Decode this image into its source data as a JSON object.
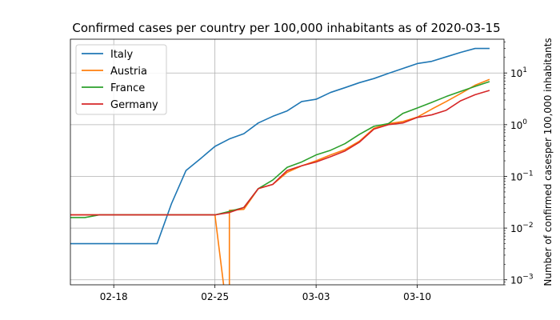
{
  "chart_data": {
    "type": "line",
    "title": "Confirmed cases per country per 100,000 inhabitants as of 2020-03-15",
    "xlabel": "",
    "ylabel": "Number of confirmed casesper 100,000 inhabitants",
    "y_scale": "log",
    "ylim": [
      0.0008,
      45
    ],
    "xlim": [
      "2020-02-15",
      "2020-03-16"
    ],
    "x_ticks": [
      {
        "date": "2020-02-18",
        "label": "02-18"
      },
      {
        "date": "2020-02-25",
        "label": "02-25"
      },
      {
        "date": "2020-03-03",
        "label": "03-03"
      },
      {
        "date": "2020-03-10",
        "label": "03-10"
      }
    ],
    "y_ticks": [
      {
        "value": 0.001,
        "base": "10",
        "exp": "−3"
      },
      {
        "value": 0.01,
        "base": "10",
        "exp": "−2"
      },
      {
        "value": 0.1,
        "base": "10",
        "exp": "−1"
      },
      {
        "value": 1,
        "base": "10",
        "exp": "0"
      },
      {
        "value": 10,
        "base": "10",
        "exp": "1"
      }
    ],
    "grid": true,
    "legend_position": "top-left",
    "series": [
      {
        "name": "Italy",
        "color": "#1f77b4",
        "points": [
          [
            "2020-02-15",
            0.005
          ],
          [
            "2020-02-16",
            0.005
          ],
          [
            "2020-02-17",
            0.005
          ],
          [
            "2020-02-18",
            0.005
          ],
          [
            "2020-02-19",
            0.005
          ],
          [
            "2020-02-20",
            0.005
          ],
          [
            "2020-02-21",
            0.005
          ],
          [
            "2020-02-22",
            0.03
          ],
          [
            "2020-02-23",
            0.13
          ],
          [
            "2020-02-24",
            0.22
          ],
          [
            "2020-02-25",
            0.38
          ],
          [
            "2020-02-26",
            0.53
          ],
          [
            "2020-02-27",
            0.67
          ],
          [
            "2020-02-28",
            1.08
          ],
          [
            "2020-02-29",
            1.45
          ],
          [
            "2020-03-01",
            1.85
          ],
          [
            "2020-03-02",
            2.8
          ],
          [
            "2020-03-03",
            3.1
          ],
          [
            "2020-03-04",
            4.2
          ],
          [
            "2020-03-05",
            5.2
          ],
          [
            "2020-03-06",
            6.5
          ],
          [
            "2020-03-07",
            7.8
          ],
          [
            "2020-03-08",
            9.8
          ],
          [
            "2020-03-09",
            12.2
          ],
          [
            "2020-03-10",
            15.2
          ],
          [
            "2020-03-11",
            16.8
          ],
          [
            "2020-03-12",
            20.5
          ],
          [
            "2020-03-13",
            25
          ],
          [
            "2020-03-14",
            29.8
          ],
          [
            "2020-03-15",
            29.8
          ]
        ]
      },
      {
        "name": "Austria",
        "color": "#ff7f0e",
        "points": [
          [
            "2020-02-15",
            0.018
          ],
          [
            "2020-02-16",
            0.018
          ],
          [
            "2020-02-17",
            0.018
          ],
          [
            "2020-02-18",
            0.018
          ],
          [
            "2020-02-19",
            0.018
          ],
          [
            "2020-02-20",
            0.018
          ],
          [
            "2020-02-21",
            0.018
          ],
          [
            "2020-02-22",
            0.018
          ],
          [
            "2020-02-23",
            0.018
          ],
          [
            "2020-02-24",
            0.018
          ],
          [
            "2020-02-25",
            0.018
          ],
          [
            "2020-02-26",
            0.0001
          ],
          [
            "2020-02-26",
            0.022
          ],
          [
            "2020-02-27",
            0.023
          ],
          [
            "2020-02-28",
            0.058
          ],
          [
            "2020-02-29",
            0.07
          ],
          [
            "2020-03-01",
            0.12
          ],
          [
            "2020-03-02",
            0.16
          ],
          [
            "2020-03-03",
            0.2
          ],
          [
            "2020-03-04",
            0.26
          ],
          [
            "2020-03-05",
            0.33
          ],
          [
            "2020-03-06",
            0.48
          ],
          [
            "2020-03-07",
            0.85
          ],
          [
            "2020-03-08",
            1.05
          ],
          [
            "2020-03-09",
            1.15
          ],
          [
            "2020-03-10",
            1.4
          ],
          [
            "2020-03-11",
            2.0
          ],
          [
            "2020-03-12",
            2.8
          ],
          [
            "2020-03-13",
            4.0
          ],
          [
            "2020-03-14",
            5.8
          ],
          [
            "2020-03-15",
            7.5
          ]
        ]
      },
      {
        "name": "France",
        "color": "#2ca02c",
        "points": [
          [
            "2020-02-15",
            0.016
          ],
          [
            "2020-02-16",
            0.016
          ],
          [
            "2020-02-17",
            0.018
          ],
          [
            "2020-02-18",
            0.018
          ],
          [
            "2020-02-19",
            0.018
          ],
          [
            "2020-02-20",
            0.018
          ],
          [
            "2020-02-21",
            0.018
          ],
          [
            "2020-02-22",
            0.018
          ],
          [
            "2020-02-23",
            0.018
          ],
          [
            "2020-02-24",
            0.018
          ],
          [
            "2020-02-25",
            0.018
          ],
          [
            "2020-02-26",
            0.021
          ],
          [
            "2020-02-27",
            0.025
          ],
          [
            "2020-02-28",
            0.058
          ],
          [
            "2020-02-29",
            0.085
          ],
          [
            "2020-03-01",
            0.15
          ],
          [
            "2020-03-02",
            0.19
          ],
          [
            "2020-03-03",
            0.26
          ],
          [
            "2020-03-04",
            0.32
          ],
          [
            "2020-03-05",
            0.43
          ],
          [
            "2020-03-06",
            0.65
          ],
          [
            "2020-03-07",
            0.93
          ],
          [
            "2020-03-08",
            1.05
          ],
          [
            "2020-03-09",
            1.65
          ],
          [
            "2020-03-10",
            2.1
          ],
          [
            "2020-03-11",
            2.7
          ],
          [
            "2020-03-12",
            3.5
          ],
          [
            "2020-03-13",
            4.4
          ],
          [
            "2020-03-14",
            5.5
          ],
          [
            "2020-03-15",
            6.8
          ]
        ]
      },
      {
        "name": "Germany",
        "color": "#d62728",
        "points": [
          [
            "2020-02-15",
            0.018
          ],
          [
            "2020-02-16",
            0.018
          ],
          [
            "2020-02-17",
            0.018
          ],
          [
            "2020-02-18",
            0.018
          ],
          [
            "2020-02-19",
            0.018
          ],
          [
            "2020-02-20",
            0.018
          ],
          [
            "2020-02-21",
            0.018
          ],
          [
            "2020-02-22",
            0.018
          ],
          [
            "2020-02-23",
            0.018
          ],
          [
            "2020-02-24",
            0.018
          ],
          [
            "2020-02-25",
            0.018
          ],
          [
            "2020-02-26",
            0.02
          ],
          [
            "2020-02-27",
            0.025
          ],
          [
            "2020-02-28",
            0.058
          ],
          [
            "2020-02-29",
            0.07
          ],
          [
            "2020-03-01",
            0.13
          ],
          [
            "2020-03-02",
            0.16
          ],
          [
            "2020-03-03",
            0.19
          ],
          [
            "2020-03-04",
            0.24
          ],
          [
            "2020-03-05",
            0.31
          ],
          [
            "2020-03-06",
            0.46
          ],
          [
            "2020-03-07",
            0.82
          ],
          [
            "2020-03-08",
            1.0
          ],
          [
            "2020-03-09",
            1.08
          ],
          [
            "2020-03-10",
            1.38
          ],
          [
            "2020-03-11",
            1.55
          ],
          [
            "2020-03-12",
            1.9
          ],
          [
            "2020-03-13",
            2.9
          ],
          [
            "2020-03-14",
            3.8
          ],
          [
            "2020-03-15",
            4.6
          ]
        ]
      }
    ]
  }
}
